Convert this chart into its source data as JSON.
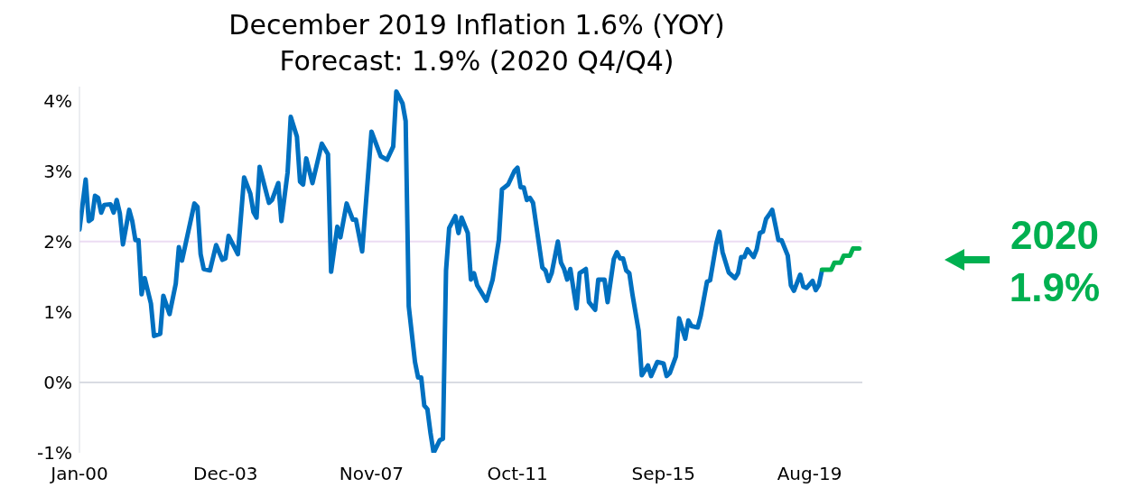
{
  "chart_data": {
    "type": "line",
    "title": "December 2019 Inflation 1.6% (YOY)",
    "subtitle": "Forecast: 1.9% (2020 Q4/Q4)",
    "annotations": [
      "2020\n1.9%"
    ],
    "xlim": [
      "2000-01",
      "2021-01"
    ],
    "xticks": [
      {
        "value": "2000-01",
        "label": "Jan-00"
      },
      {
        "value": "2003-12",
        "label": "Dec-03"
      },
      {
        "value": "2007-11",
        "label": "Nov-07"
      },
      {
        "value": "2011-10",
        "label": "Oct-11"
      },
      {
        "value": "2015-09",
        "label": "Sep-15"
      },
      {
        "value": "2019-08",
        "label": "Aug-19"
      }
    ],
    "ylim": [
      -1,
      4.2
    ],
    "yticks": [
      {
        "value": -1,
        "label": "-1%"
      },
      {
        "value": 0,
        "label": "0%"
      },
      {
        "value": 1,
        "label": "1%"
      },
      {
        "value": 2,
        "label": "2%"
      },
      {
        "value": 3,
        "label": "3%"
      },
      {
        "value": 4,
        "label": "4%"
      }
    ],
    "ref_lines": [
      {
        "axis": "y",
        "value": 0,
        "color": "#d9dce3"
      },
      {
        "axis": "y",
        "value": 2,
        "color": "#ecdcf3"
      }
    ],
    "series": [
      {
        "color": "#0070c0",
        "x": [
          "2000-01",
          "2000-03",
          "2000-04",
          "2000-05",
          "2000-06",
          "2000-07",
          "2000-08",
          "2000-09",
          "2000-11",
          "2000-12",
          "2001-01",
          "2001-02",
          "2001-03",
          "2001-05",
          "2001-06",
          "2001-07",
          "2001-08",
          "2001-09",
          "2001-10",
          "2001-12",
          "2002-01",
          "2002-03",
          "2002-04",
          "2002-06",
          "2002-08",
          "2002-09",
          "2002-10",
          "2003-02",
          "2003-03",
          "2003-04",
          "2003-05",
          "2003-07",
          "2003-09",
          "2003-11",
          "2003-12",
          "2004-01",
          "2004-04",
          "2004-06",
          "2004-08",
          "2004-09",
          "2004-10",
          "2004-11",
          "2005-02",
          "2005-03",
          "2005-05",
          "2005-06",
          "2005-08",
          "2005-09",
          "2005-11",
          "2005-12",
          "2006-01",
          "2006-02",
          "2006-04",
          "2006-07",
          "2006-09",
          "2006-10",
          "2006-12",
          "2007-01",
          "2007-03",
          "2007-05",
          "2007-06",
          "2007-08",
          "2007-11",
          "2008-02",
          "2008-04",
          "2008-06",
          "2008-07",
          "2008-09",
          "2008-10",
          "2008-11",
          "2009-01",
          "2009-02",
          "2009-03",
          "2009-04",
          "2009-05",
          "2009-06",
          "2009-07",
          "2009-09",
          "2009-10",
          "2009-11",
          "2009-12",
          "2010-02",
          "2010-03",
          "2010-04",
          "2010-06",
          "2010-07",
          "2010-08",
          "2010-09",
          "2010-12",
          "2011-02",
          "2011-04",
          "2011-05",
          "2011-07",
          "2011-09",
          "2011-10",
          "2011-11",
          "2011-12",
          "2012-01",
          "2012-02",
          "2012-03",
          "2012-06",
          "2012-07",
          "2012-08",
          "2012-09",
          "2012-11",
          "2012-12",
          "2013-01",
          "2013-02",
          "2013-03",
          "2013-05",
          "2013-06",
          "2013-08",
          "2013-09",
          "2013-11",
          "2013-12",
          "2014-02",
          "2014-03",
          "2014-05",
          "2014-06",
          "2014-07",
          "2014-08",
          "2014-09",
          "2014-10",
          "2014-11",
          "2015-01",
          "2015-02",
          "2015-04",
          "2015-05",
          "2015-07",
          "2015-09",
          "2015-10",
          "2015-11",
          "2016-01",
          "2016-02",
          "2016-04",
          "2016-05",
          "2016-06",
          "2016-08",
          "2016-09",
          "2016-11",
          "2016-12",
          "2017-02",
          "2017-03",
          "2017-04",
          "2017-06",
          "2017-08",
          "2017-09",
          "2017-10",
          "2017-11",
          "2017-12",
          "2018-02",
          "2018-03",
          "2018-04",
          "2018-05",
          "2018-06",
          "2018-07",
          "2018-08",
          "2018-10",
          "2018-11",
          "2019-01",
          "2019-02",
          "2019-03",
          "2019-05",
          "2019-06",
          "2019-07",
          "2019-09",
          "2019-10",
          "2019-11",
          "2019-12"
        ],
        "values": [
          2.17,
          2.88,
          2.29,
          2.32,
          2.65,
          2.62,
          2.41,
          2.52,
          2.53,
          2.41,
          2.59,
          2.4,
          1.96,
          2.45,
          2.29,
          2.02,
          2.02,
          1.25,
          1.48,
          1.12,
          0.66,
          0.69,
          1.23,
          0.97,
          1.4,
          1.92,
          1.73,
          2.54,
          2.49,
          1.82,
          1.61,
          1.59,
          1.95,
          1.74,
          1.76,
          2.08,
          1.82,
          2.91,
          2.68,
          2.42,
          2.34,
          3.06,
          2.55,
          2.59,
          2.83,
          2.29,
          2.98,
          3.77,
          3.49,
          2.85,
          2.81,
          3.18,
          2.83,
          3.39,
          3.24,
          1.57,
          2.21,
          2.06,
          2.54,
          2.31,
          2.31,
          1.86,
          3.56,
          3.21,
          3.16,
          3.35,
          4.13,
          3.96,
          3.71,
          1.08,
          0.29,
          0.07,
          0.07,
          -0.33,
          -0.38,
          -0.72,
          -1.0,
          -0.82,
          -0.8,
          1.59,
          2.19,
          2.36,
          2.12,
          2.34,
          2.12,
          1.46,
          1.55,
          1.38,
          1.16,
          1.46,
          2.02,
          2.74,
          2.81,
          3.0,
          3.05,
          2.77,
          2.77,
          2.59,
          2.62,
          2.55,
          1.63,
          1.59,
          1.44,
          1.55,
          2.0,
          1.7,
          1.61,
          1.46,
          1.61,
          1.05,
          1.55,
          1.61,
          1.14,
          1.03,
          1.46,
          1.46,
          1.14,
          1.75,
          1.85,
          1.76,
          1.76,
          1.59,
          1.55,
          1.25,
          0.73,
          0.1,
          0.24,
          0.09,
          0.29,
          0.27,
          0.09,
          0.13,
          0.37,
          0.91,
          0.62,
          0.88,
          0.8,
          0.78,
          0.95,
          1.43,
          1.45,
          1.97,
          2.14,
          1.85,
          1.56,
          1.48,
          1.55,
          1.78,
          1.78,
          1.89,
          1.78,
          1.89,
          2.12,
          2.14,
          2.32,
          2.38,
          2.45,
          2.02,
          2.02,
          1.8,
          1.38,
          1.3,
          1.53,
          1.36,
          1.34,
          1.44,
          1.31,
          1.38,
          1.59
        ]
      },
      {
        "color": "#00b050",
        "x": [
          "2019-12",
          "2020-03",
          "2020-04",
          "2020-06",
          "2020-07",
          "2020-09",
          "2020-10",
          "2020-12"
        ],
        "values": [
          1.6,
          1.6,
          1.7,
          1.7,
          1.8,
          1.8,
          1.9,
          1.9
        ]
      }
    ]
  }
}
